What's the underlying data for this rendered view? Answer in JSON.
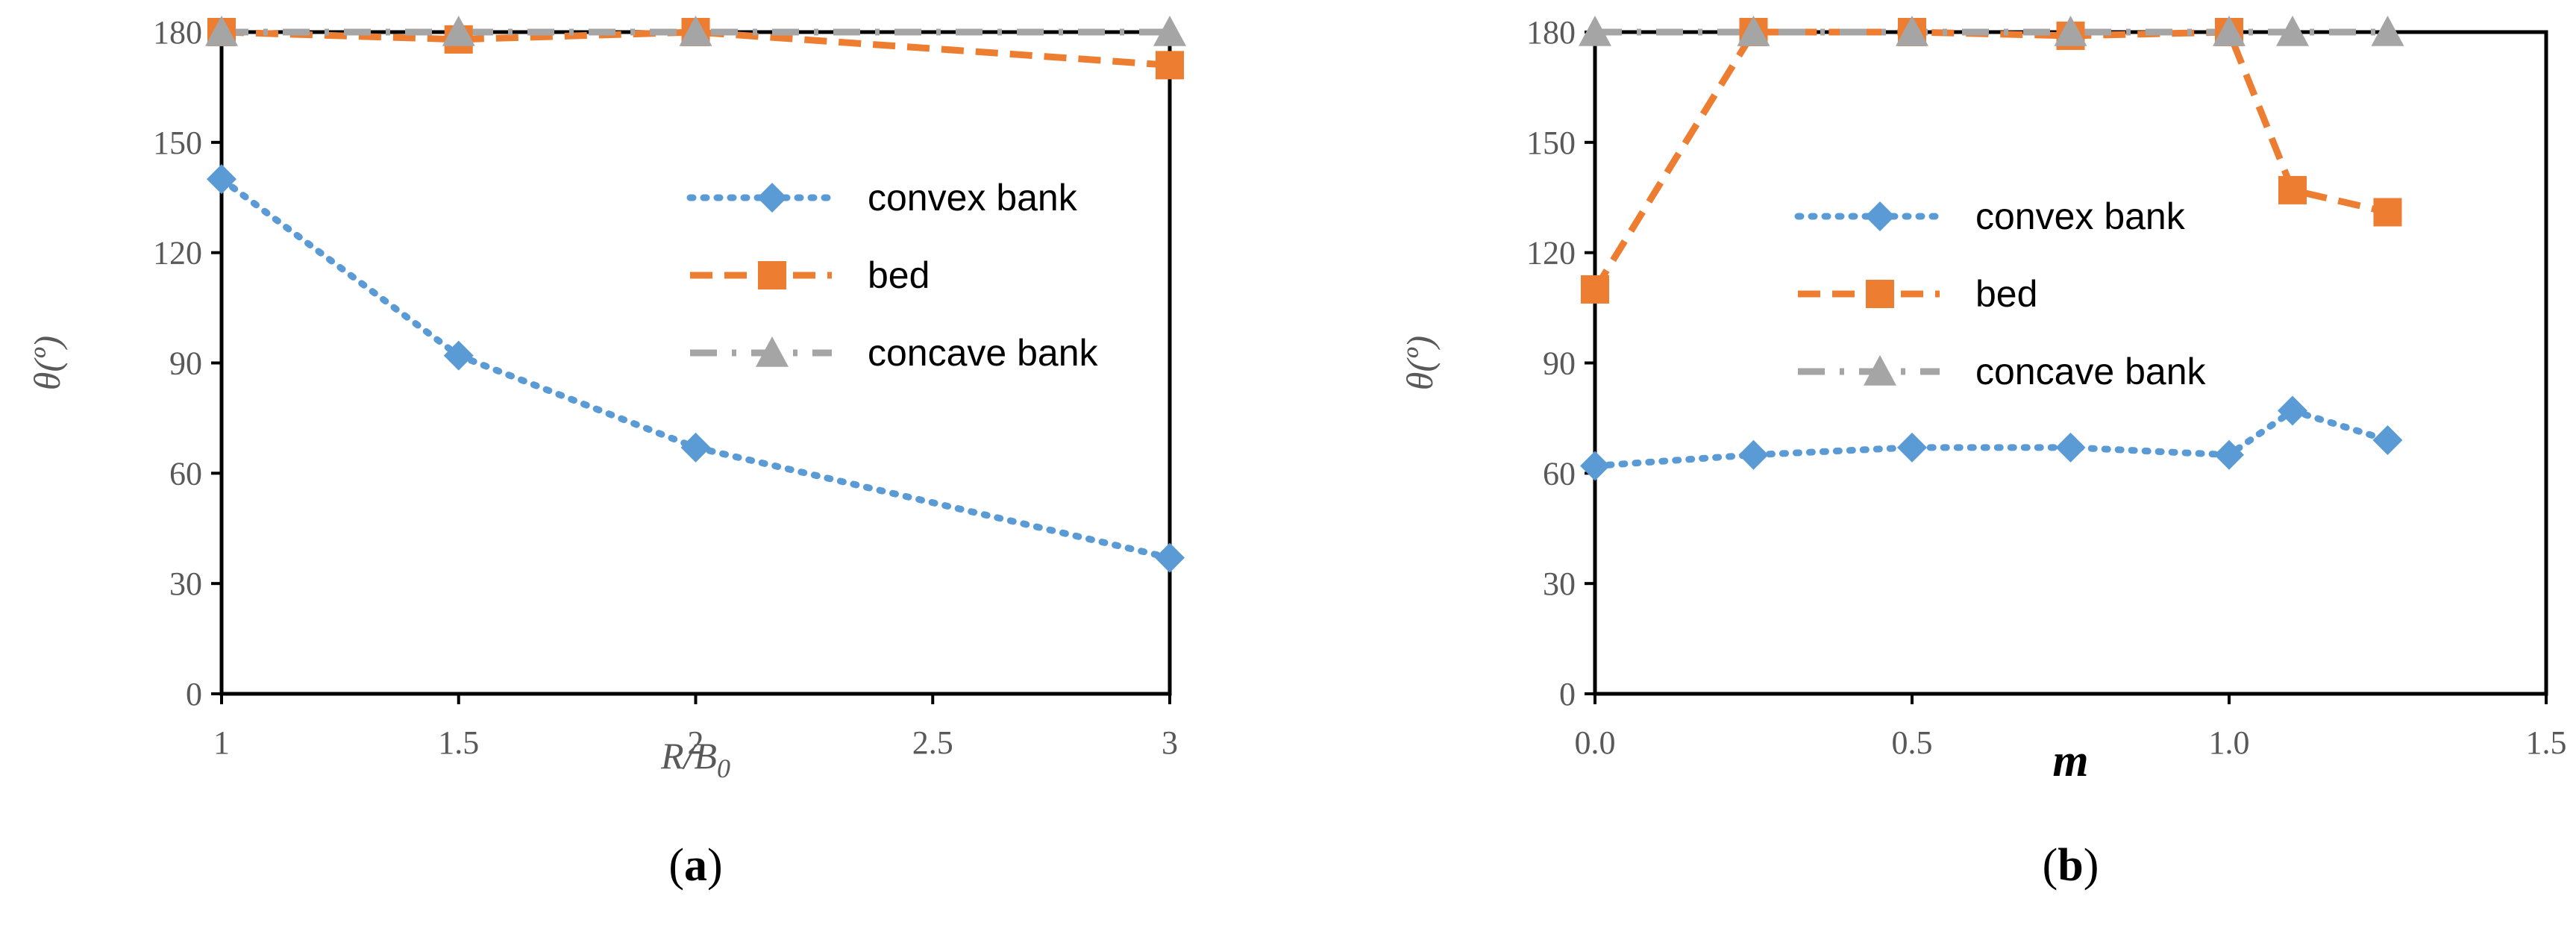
{
  "chart_data": [
    {
      "type": "line",
      "panel_label": "a",
      "xlabel_main": "R/B",
      "xlabel_sub": "0",
      "ylabel": "θ(º)",
      "xlim": [
        1,
        3
      ],
      "ylim": [
        0,
        180
      ],
      "xticks": [
        "1",
        "1.5",
        "2",
        "2.5",
        "3"
      ],
      "yticks": [
        "0",
        "30",
        "60",
        "90",
        "120",
        "150",
        "180"
      ],
      "legend_position": "right-center",
      "series": [
        {
          "name": "convex bank",
          "color": "#5B9BD5",
          "style": "dotted",
          "marker": "diamond",
          "x": [
            1,
            1.5,
            2,
            3
          ],
          "y": [
            140,
            92,
            67,
            37
          ]
        },
        {
          "name": "bed",
          "color": "#ED7D31",
          "style": "dashed",
          "marker": "square",
          "x": [
            1,
            1.5,
            2,
            3
          ],
          "y": [
            180,
            178,
            180,
            171
          ]
        },
        {
          "name": "concave bank",
          "color": "#A5A5A5",
          "style": "dash-dot",
          "marker": "triangle",
          "x": [
            1,
            1.5,
            2,
            3
          ],
          "y": [
            180,
            180,
            180,
            180
          ]
        }
      ]
    },
    {
      "type": "line",
      "panel_label": "b",
      "xlabel_main": "m",
      "ylabel": "θ(º)",
      "xlim": [
        0,
        1.5
      ],
      "ylim": [
        0,
        180
      ],
      "xticks": [
        "0.0",
        "0.5",
        "1.0",
        "1.5"
      ],
      "yticks": [
        "0",
        "30",
        "60",
        "90",
        "120",
        "150",
        "180"
      ],
      "legend_position": "center",
      "series": [
        {
          "name": "convex bank",
          "color": "#5B9BD5",
          "style": "dotted",
          "marker": "diamond",
          "x": [
            0,
            0.25,
            0.5,
            0.75,
            1.0,
            1.1,
            1.25
          ],
          "y": [
            62,
            65,
            67,
            67,
            65,
            77,
            69
          ]
        },
        {
          "name": "bed",
          "color": "#ED7D31",
          "style": "dashed",
          "marker": "square",
          "x": [
            0,
            0.25,
            0.5,
            0.75,
            1.0,
            1.1,
            1.25
          ],
          "y": [
            110,
            180,
            180,
            179,
            180,
            137,
            131
          ]
        },
        {
          "name": "concave bank",
          "color": "#A5A5A5",
          "style": "dash-dot",
          "marker": "triangle",
          "x": [
            0,
            0.25,
            0.5,
            0.75,
            1.0,
            1.1,
            1.25
          ],
          "y": [
            180,
            180,
            180,
            180,
            180,
            180,
            180
          ]
        }
      ]
    }
  ]
}
